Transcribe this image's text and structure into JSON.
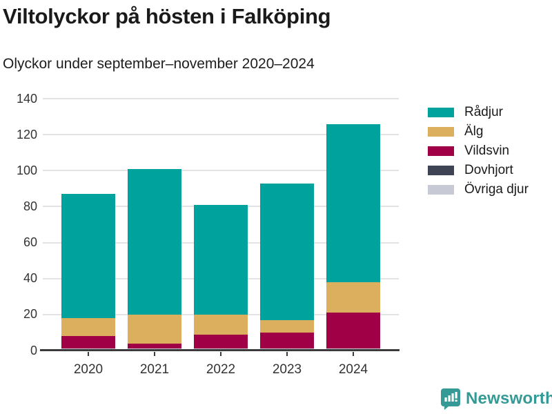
{
  "header": {
    "title": "Viltolyckor på hösten i Falköping",
    "subtitle": "Olyckor under september–november 2020–2024"
  },
  "chart_data": {
    "type": "bar",
    "stacked": true,
    "grid": true,
    "legend_position": "right",
    "categories": [
      "2020",
      "2021",
      "2022",
      "2023",
      "2024"
    ],
    "series": [
      {
        "name": "Rådjur",
        "color": "#00a29e",
        "values": [
          69,
          81,
          61,
          76,
          88
        ]
      },
      {
        "name": "Älg",
        "color": "#dcaf5f",
        "values": [
          10,
          16,
          11,
          7,
          17
        ]
      },
      {
        "name": "Vildsvin",
        "color": "#a00045",
        "values": [
          7,
          3,
          8,
          9,
          20
        ]
      },
      {
        "name": "Dovhjort",
        "color": "#3f4455",
        "values": [
          0,
          0,
          0,
          0,
          0
        ]
      },
      {
        "name": "Övriga djur",
        "color": "#c7cad4",
        "values": [
          1,
          1,
          1,
          1,
          1
        ]
      }
    ],
    "totals": [
      87,
      101,
      81,
      93,
      126
    ],
    "xlabel": "",
    "ylabel": "",
    "ylim": [
      0,
      140
    ],
    "yticks": [
      0,
      20,
      40,
      60,
      80,
      100,
      120,
      140
    ]
  },
  "colors": {
    "axis": "#3a3a3a",
    "gridline": "#e3e3e3",
    "text": "#333333",
    "brand_teal": "#359a96"
  },
  "footer": {
    "brand": "Newsworthy"
  }
}
